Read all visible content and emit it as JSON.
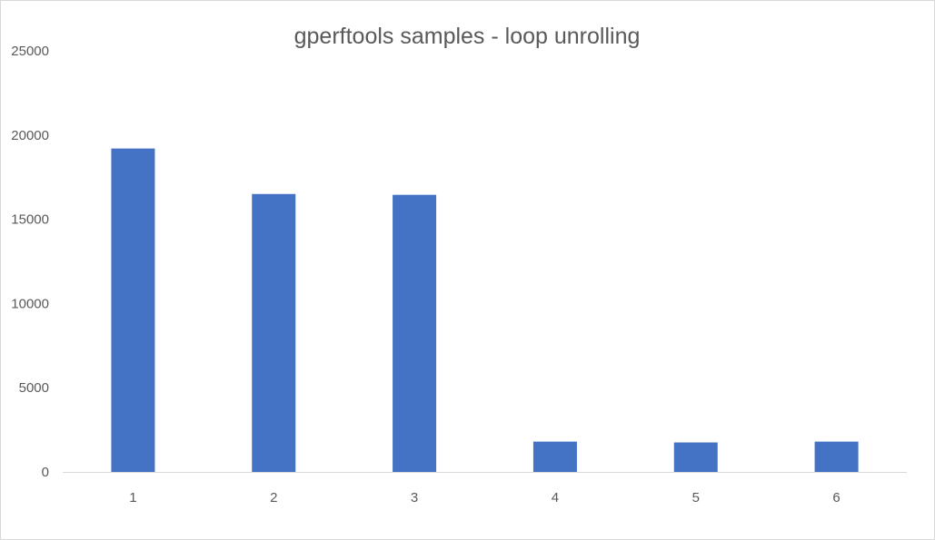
{
  "chart_data": {
    "type": "bar",
    "title": "gperftools samples - loop unrolling",
    "xlabel": "",
    "ylabel": "",
    "categories": [
      "1",
      "2",
      "3",
      "4",
      "5",
      "6"
    ],
    "values": [
      19200,
      16500,
      16450,
      1800,
      1750,
      1800
    ],
    "ylim": [
      0,
      25000
    ],
    "yticks": [
      "0",
      "5000",
      "10000",
      "15000",
      "20000",
      "25000"
    ],
    "grid": false,
    "legend": "none",
    "colors": {
      "bar": "#4472c4",
      "axis": "#d9d9d9",
      "text": "#595959"
    }
  }
}
